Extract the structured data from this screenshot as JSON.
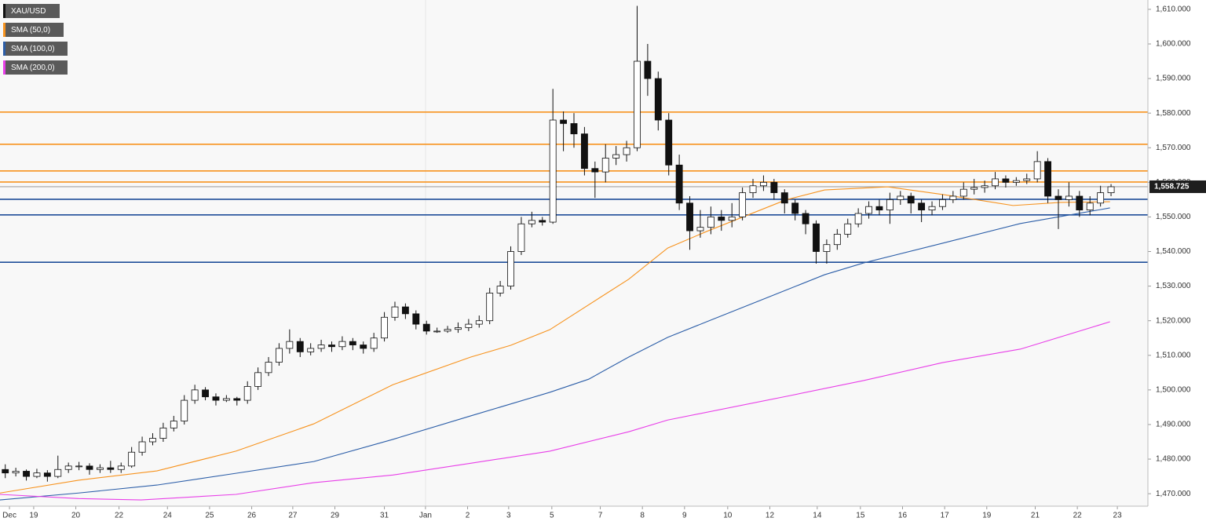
{
  "chart_data": {
    "type": "candlestick",
    "instrument": "XAU/USD",
    "instrument_color": "#111111",
    "up_color": "#ffffff",
    "down_color": "#111111",
    "ylim": [
      1466.4,
      1612.7
    ],
    "yticks": [
      {
        "value": 1470,
        "label": "1,470.000"
      },
      {
        "value": 1480,
        "label": "1,480.000"
      },
      {
        "value": 1490,
        "label": "1,490.000"
      },
      {
        "value": 1500,
        "label": "1,500.000"
      },
      {
        "value": 1510,
        "label": "1,510.000"
      },
      {
        "value": 1520,
        "label": "1,520.000"
      },
      {
        "value": 1530,
        "label": "1,530.000"
      },
      {
        "value": 1540,
        "label": "1,540.000"
      },
      {
        "value": 1550,
        "label": "1,550.000"
      },
      {
        "value": 1560,
        "label": "1,560.000"
      },
      {
        "value": 1570,
        "label": "1,570.000"
      },
      {
        "value": 1580,
        "label": "1,580.000"
      },
      {
        "value": 1590,
        "label": "1,590.000"
      },
      {
        "value": 1600,
        "label": "1,600.000"
      },
      {
        "value": 1610,
        "label": "1,610.000"
      }
    ],
    "xlim": [
      0,
      109
    ],
    "xticks": [
      {
        "value": 0.9,
        "label": "Dec"
      },
      {
        "value": 3.2,
        "label": "19"
      },
      {
        "value": 7.2,
        "label": "20"
      },
      {
        "value": 11.3,
        "label": "22"
      },
      {
        "value": 15.9,
        "label": "24"
      },
      {
        "value": 19.9,
        "label": "25"
      },
      {
        "value": 23.9,
        "label": "26"
      },
      {
        "value": 27.8,
        "label": "27"
      },
      {
        "value": 31.8,
        "label": "29"
      },
      {
        "value": 36.5,
        "label": "31"
      },
      {
        "value": 40.4,
        "label": "Jan"
      },
      {
        "value": 44.4,
        "label": "2"
      },
      {
        "value": 48.3,
        "label": "3"
      },
      {
        "value": 52.4,
        "label": "5"
      },
      {
        "value": 57.0,
        "label": "7"
      },
      {
        "value": 61.0,
        "label": "8"
      },
      {
        "value": 65.0,
        "label": "9"
      },
      {
        "value": 69.1,
        "label": "10"
      },
      {
        "value": 73.1,
        "label": "12"
      },
      {
        "value": 77.6,
        "label": "14"
      },
      {
        "value": 81.7,
        "label": "15"
      },
      {
        "value": 85.7,
        "label": "16"
      },
      {
        "value": 89.7,
        "label": "17"
      },
      {
        "value": 93.7,
        "label": "19"
      },
      {
        "value": 98.3,
        "label": "21"
      },
      {
        "value": 102.3,
        "label": "22"
      },
      {
        "value": 106.1,
        "label": "23"
      }
    ],
    "candles": [
      [
        1477,
        1478.5,
        1474.5,
        1476
      ],
      [
        1476,
        1477.5,
        1475,
        1476.5
      ],
      [
        1476.5,
        1477,
        1473.8,
        1475
      ],
      [
        1475,
        1477.2,
        1474.5,
        1476
      ],
      [
        1476,
        1476.8,
        1473.5,
        1475
      ],
      [
        1475,
        1481,
        1474.5,
        1477
      ],
      [
        1477,
        1479,
        1476,
        1478
      ],
      [
        1478,
        1479.2,
        1476.8,
        1478
      ],
      [
        1478,
        1478.8,
        1475.5,
        1477
      ],
      [
        1477,
        1478.5,
        1476,
        1477.5
      ],
      [
        1477.5,
        1479.5,
        1476,
        1477
      ],
      [
        1477,
        1479,
        1476,
        1478
      ],
      [
        1478,
        1483.5,
        1477.5,
        1482
      ],
      [
        1482,
        1486.5,
        1481,
        1485
      ],
      [
        1485,
        1487.5,
        1484,
        1486
      ],
      [
        1486,
        1490.5,
        1485,
        1489
      ],
      [
        1489,
        1492.5,
        1488,
        1491
      ],
      [
        1491,
        1498.5,
        1490,
        1497
      ],
      [
        1497,
        1501.5,
        1496,
        1500
      ],
      [
        1500,
        1500.8,
        1497,
        1498
      ],
      [
        1498,
        1499,
        1495.5,
        1497
      ],
      [
        1497,
        1498.5,
        1496.5,
        1497.5
      ],
      [
        1497.5,
        1498,
        1495.5,
        1497
      ],
      [
        1497,
        1502.5,
        1496,
        1501
      ],
      [
        1501,
        1506.5,
        1500,
        1505
      ],
      [
        1505,
        1509.5,
        1504,
        1508
      ],
      [
        1508,
        1513.5,
        1507,
        1512
      ],
      [
        1512,
        1517.5,
        1510.5,
        1514
      ],
      [
        1514,
        1515,
        1509.5,
        1511
      ],
      [
        1511,
        1513.5,
        1510,
        1512
      ],
      [
        1512,
        1514.5,
        1511,
        1513
      ],
      [
        1513,
        1514,
        1511,
        1512.5
      ],
      [
        1512.5,
        1515.5,
        1511.5,
        1514
      ],
      [
        1514,
        1515,
        1511.5,
        1513
      ],
      [
        1513,
        1514,
        1510.5,
        1512
      ],
      [
        1512,
        1516.5,
        1511,
        1515
      ],
      [
        1515,
        1522.5,
        1514,
        1521
      ],
      [
        1521,
        1525.5,
        1520,
        1524
      ],
      [
        1524,
        1525,
        1520.5,
        1522
      ],
      [
        1522,
        1523,
        1517.5,
        1519
      ],
      [
        1519,
        1520,
        1516,
        1517
      ],
      [
        1517,
        1518,
        1516.5,
        1517
      ],
      [
        1517,
        1518.5,
        1516.5,
        1517.5
      ],
      [
        1517.5,
        1519.5,
        1516.5,
        1518
      ],
      [
        1518,
        1520.5,
        1517,
        1519
      ],
      [
        1519,
        1521.5,
        1518,
        1520
      ],
      [
        1520,
        1529.5,
        1519,
        1528
      ],
      [
        1528,
        1531.5,
        1527,
        1530
      ],
      [
        1530,
        1541.5,
        1529,
        1540
      ],
      [
        1540,
        1550,
        1539,
        1548
      ],
      [
        1548,
        1551.5,
        1547,
        1549
      ],
      [
        1549,
        1550,
        1547.5,
        1548.5
      ],
      [
        1548.5,
        1587,
        1548,
        1578
      ],
      [
        1578,
        1580.5,
        1569,
        1577
      ],
      [
        1577,
        1580,
        1570,
        1574
      ],
      [
        1574,
        1576,
        1562,
        1564
      ],
      [
        1564,
        1566,
        1555.5,
        1563
      ],
      [
        1563,
        1571,
        1560,
        1567
      ],
      [
        1567,
        1570.5,
        1565,
        1568
      ],
      [
        1568,
        1572,
        1566,
        1570
      ],
      [
        1570,
        1611,
        1569,
        1595
      ],
      [
        1595,
        1600,
        1585,
        1590
      ],
      [
        1590,
        1592,
        1575,
        1578
      ],
      [
        1578,
        1580,
        1562,
        1565
      ],
      [
        1565,
        1568,
        1552,
        1554
      ],
      [
        1554,
        1556,
        1540.5,
        1546
      ],
      [
        1546,
        1552,
        1544,
        1547
      ],
      [
        1547,
        1553,
        1545,
        1550
      ],
      [
        1550,
        1552,
        1546,
        1549
      ],
      [
        1549,
        1554,
        1547,
        1550
      ],
      [
        1550,
        1558.5,
        1549,
        1557
      ],
      [
        1557,
        1561,
        1555.5,
        1559
      ],
      [
        1559,
        1562,
        1557.5,
        1560
      ],
      [
        1560,
        1561,
        1555,
        1557
      ],
      [
        1557,
        1558,
        1551,
        1554
      ],
      [
        1554,
        1555,
        1549,
        1551
      ],
      [
        1551,
        1552,
        1545,
        1548
      ],
      [
        1548,
        1549,
        1536.5,
        1540
      ],
      [
        1540,
        1543.5,
        1536.5,
        1542
      ],
      [
        1542,
        1546.5,
        1540.5,
        1545
      ],
      [
        1545,
        1549.5,
        1544,
        1548
      ],
      [
        1548,
        1552.5,
        1547,
        1551
      ],
      [
        1551,
        1554.5,
        1549.5,
        1553
      ],
      [
        1553,
        1555,
        1550.5,
        1552
      ],
      [
        1552,
        1557,
        1548,
        1555
      ],
      [
        1555,
        1557.5,
        1553.5,
        1556
      ],
      [
        1556,
        1557,
        1551,
        1554
      ],
      [
        1554,
        1555,
        1548.5,
        1552
      ],
      [
        1552,
        1554.5,
        1550.5,
        1553
      ],
      [
        1553,
        1556.5,
        1552,
        1555
      ],
      [
        1555,
        1557.5,
        1554,
        1556
      ],
      [
        1556,
        1560,
        1555,
        1558
      ],
      [
        1558,
        1561,
        1556.5,
        1558.5
      ],
      [
        1558.5,
        1560.5,
        1557,
        1559
      ],
      [
        1559,
        1563,
        1558,
        1561
      ],
      [
        1561,
        1562,
        1558.5,
        1560
      ],
      [
        1560,
        1561.5,
        1559,
        1560.5
      ],
      [
        1560.5,
        1562.5,
        1559.5,
        1561
      ],
      [
        1561,
        1569,
        1560,
        1566
      ],
      [
        1566,
        1567,
        1554,
        1556
      ],
      [
        1556,
        1558,
        1546.5,
        1555
      ],
      [
        1555,
        1560,
        1553,
        1556
      ],
      [
        1556,
        1557.5,
        1550,
        1552
      ],
      [
        1552,
        1556,
        1550.5,
        1554
      ],
      [
        1554,
        1559,
        1553,
        1557
      ],
      [
        1557,
        1559.5,
        1556,
        1558.725
      ]
    ],
    "series": [
      {
        "name": "SMA (50,0)",
        "color": "#f7931e",
        "x": [
          0,
          7.46,
          14.9,
          22.4,
          29.8,
          37.3,
          44.7,
          48.5,
          52.2,
          59.7,
          63.4,
          67.1,
          74.6,
          78.3,
          84.3,
          89.5,
          96.2,
          100.7,
          105.4
        ],
        "values": [
          1470.2,
          1473.9,
          1476.6,
          1482.3,
          1490.2,
          1501.5,
          1509.5,
          1512.9,
          1517.4,
          1532,
          1541,
          1545.8,
          1554.9,
          1557.8,
          1558.7,
          1556.5,
          1553.3,
          1554.2,
          1554.4
        ]
      },
      {
        "name": "SMA (100,0)",
        "color": "#2c5ea8",
        "x": [
          0,
          7.46,
          14.9,
          22.4,
          29.8,
          37.3,
          44.7,
          52.2,
          55.9,
          59.7,
          63.4,
          67.1,
          74.6,
          78.3,
          82.0,
          89.5,
          96.9,
          105.4
        ],
        "values": [
          1468.2,
          1470.2,
          1472.5,
          1475.9,
          1479.3,
          1485.7,
          1492.5,
          1499.3,
          1503.1,
          1509.5,
          1515.2,
          1519.7,
          1528.8,
          1533.3,
          1536.7,
          1542.4,
          1548.1,
          1552.6
        ]
      },
      {
        "name": "SMA (200,0)",
        "color": "#e83ee8",
        "x": [
          0,
          7.46,
          13.4,
          22.4,
          29.8,
          37.3,
          44.7,
          52.2,
          59.7,
          63.4,
          74.6,
          82.0,
          89.5,
          96.9,
          105.4
        ],
        "values": [
          1469.8,
          1468.6,
          1468.2,
          1469.8,
          1473.2,
          1475.4,
          1478.8,
          1482.3,
          1487.9,
          1491.3,
          1498.1,
          1502.7,
          1507.9,
          1511.8,
          1519.7
        ]
      }
    ],
    "levels": [
      {
        "value": 1580.3,
        "color": "#f7931e"
      },
      {
        "value": 1571.0,
        "color": "#f7931e"
      },
      {
        "value": 1563.3,
        "color": "#f7931e"
      },
      {
        "value": 1560.1,
        "color": "#f7931e"
      },
      {
        "value": 1555.1,
        "color": "#1f4e99"
      },
      {
        "value": 1550.6,
        "color": "#1f4e99"
      },
      {
        "value": 1536.9,
        "color": "#1f4e99"
      }
    ],
    "last_price": {
      "value": 1558.725,
      "label": "1,558.725"
    }
  }
}
